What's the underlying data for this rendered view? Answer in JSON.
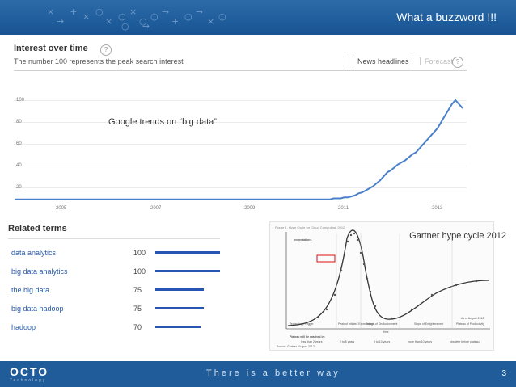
{
  "slide": {
    "title": "What a buzzword !!!",
    "page_number": "3",
    "footer_tagline": "There is a better way",
    "logo_text": "OCTO",
    "logo_subtext": "Technology",
    "header_glyphs": [
      "×",
      "→",
      "+",
      "×",
      "○",
      "×",
      "○",
      "×",
      "○",
      "○",
      "→",
      "+",
      "○",
      "→",
      "×",
      "○",
      "○",
      "→"
    ]
  },
  "trends": {
    "title": "Interest over time",
    "subtitle": "The number 100 represents the peak search interest",
    "help_icon": "?",
    "news_headlines": "News headlines",
    "forecast": "Forecast",
    "caption": "Google trends on “big data”"
  },
  "related": {
    "title": "Related terms",
    "items": [
      {
        "term": "data analytics",
        "value": "100"
      },
      {
        "term": "big data analytics",
        "value": "100"
      },
      {
        "term": "the big data",
        "value": "75"
      },
      {
        "term": "big data hadoop",
        "value": "75"
      },
      {
        "term": "hadoop",
        "value": "70"
      }
    ]
  },
  "gartner": {
    "caption": "Gartner hype cycle 2012",
    "figure_note": "Figure 1. Hype Cycle for Cloud Computing, 2012",
    "y_label": "expectations",
    "x_label": "time",
    "phases": [
      "Technology Trigger",
      "Peak of Inflated Expectations",
      "Trough of Disillusionment",
      "Slope of Enlightenment",
      "Plateau of Productivity"
    ],
    "as_of": "As of August 2012",
    "legend_title": "Plateau will be reached in:",
    "legend": [
      "less than 2 years",
      "2 to 5 years",
      "5 to 10 years",
      "more than 10 years",
      "obsolete before plateau"
    ],
    "source": "Source: Gartner (August 2012)"
  },
  "chart_data": {
    "type": "line",
    "title": "Interest over time",
    "series": [
      {
        "values": [
          1,
          1,
          1,
          1,
          1,
          1,
          1,
          1,
          1,
          1,
          1,
          1,
          1,
          1,
          1,
          1,
          1,
          1,
          1,
          1,
          1,
          1,
          1,
          1,
          1,
          1,
          1,
          1,
          1,
          1,
          1,
          1,
          1,
          1,
          1,
          1,
          1,
          1,
          1,
          1,
          1,
          1,
          1,
          1,
          1,
          1,
          1,
          1,
          1,
          1,
          1,
          1,
          1,
          1,
          1,
          1,
          1,
          1,
          1,
          1,
          1,
          1,
          1,
          1,
          1,
          1,
          1,
          1,
          1,
          1,
          1,
          1,
          1,
          1,
          1,
          1,
          1,
          1,
          1,
          1,
          1,
          1,
          1,
          1,
          1,
          1,
          1,
          1,
          1,
          2,
          2,
          2,
          3,
          3,
          4,
          5,
          7,
          8,
          10,
          12,
          14,
          17,
          20,
          24,
          28,
          30,
          33,
          36,
          38,
          40,
          43,
          46,
          48,
          52,
          56,
          60,
          64,
          68,
          72,
          78,
          84,
          90,
          96,
          100,
          96,
          92
        ]
      }
    ],
    "x_ticks": [
      "2005",
      "2007",
      "2009",
      "2011",
      "2013"
    ],
    "y_ticks": [
      "100",
      "80",
      "60",
      "40",
      "20"
    ],
    "ylim": [
      0,
      100
    ],
    "grid": true,
    "color": "#4a7fc9"
  }
}
